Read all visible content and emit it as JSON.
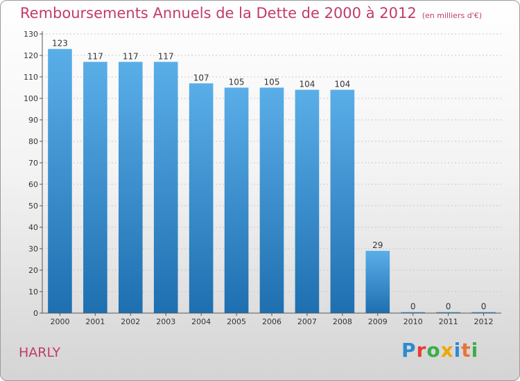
{
  "header": {
    "title": "Remboursements Annuels de la Dette de 2000 à 2012",
    "unit": "(en milliers d'€)"
  },
  "footer": {
    "commune": "HARLY",
    "logo_letters": [
      "P",
      "r",
      "o",
      "x",
      "i",
      "t",
      "i"
    ],
    "logo_colors": [
      "#2d8ad1",
      "#e83a3a",
      "#3aae49",
      "#f0a500",
      "#2d8ad1",
      "#e8743a",
      "#3aae49"
    ]
  },
  "colors": {
    "bar_top": "#5aaee8",
    "bar_bottom": "#1e6fb0",
    "grid": "#c8c8c8",
    "axis": "#555555",
    "title": "#c23a6e"
  },
  "chart_data": {
    "type": "bar",
    "title": "Remboursements Annuels de la Dette de 2000 à 2012",
    "xlabel": "",
    "ylabel": "",
    "categories": [
      "2000",
      "2001",
      "2002",
      "2003",
      "2004",
      "2005",
      "2006",
      "2007",
      "2008",
      "2009",
      "2010",
      "2011",
      "2012"
    ],
    "values": [
      123,
      117,
      117,
      117,
      107,
      105,
      105,
      104,
      104,
      29,
      0,
      0,
      0
    ],
    "ylim": [
      0,
      130
    ],
    "yticks": [
      0,
      10,
      20,
      30,
      40,
      50,
      60,
      70,
      80,
      90,
      100,
      110,
      120,
      130
    ],
    "grid": true,
    "legend": "none"
  }
}
